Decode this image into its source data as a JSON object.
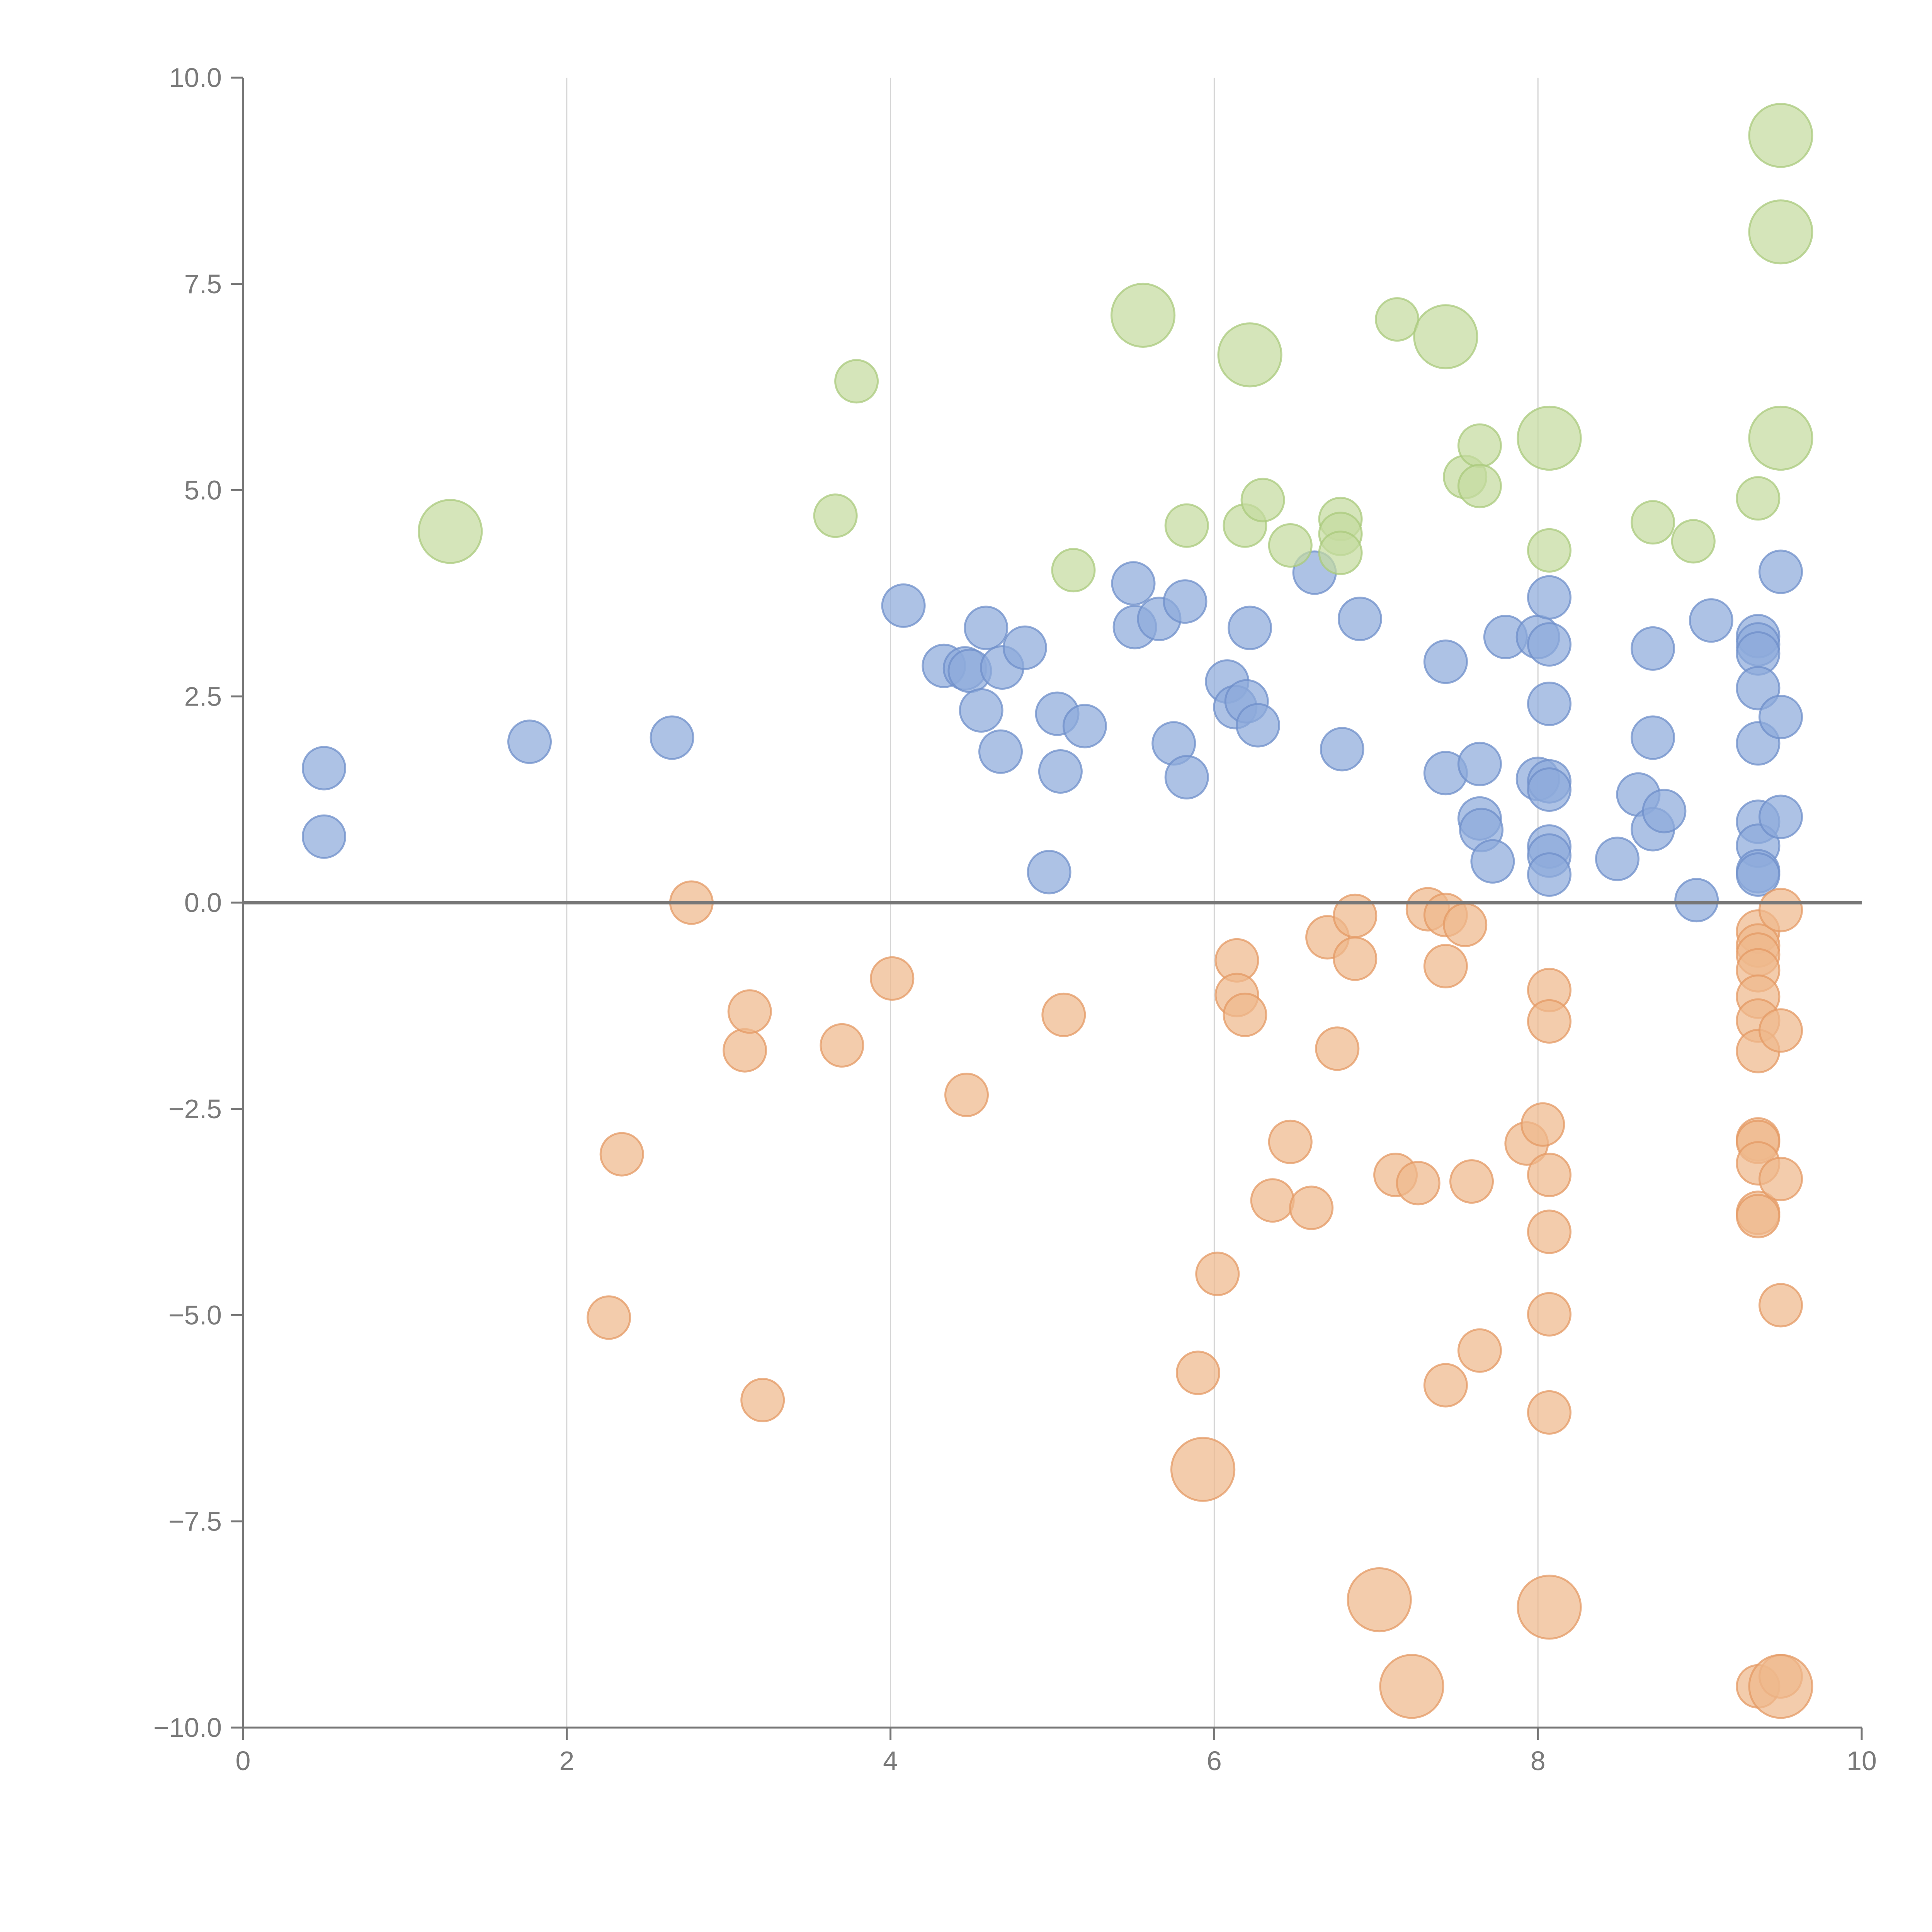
{
  "chart_data": {
    "type": "scatter",
    "title": "",
    "xlabel": "",
    "ylabel": "",
    "xlim": [
      0,
      10
    ],
    "ylim": [
      -10,
      10
    ],
    "x_ticks": [
      0,
      2,
      4,
      6,
      8,
      10
    ],
    "x_tick_labels": [
      "0",
      "2",
      "4",
      "6",
      "8",
      "10"
    ],
    "y_ticks": [
      -10,
      -7.5,
      -5,
      -2.5,
      0,
      2.5,
      5,
      7.5,
      10
    ],
    "y_tick_labels": [
      "−10.0",
      "−7.5",
      "−5.0",
      "−2.5",
      "0.0",
      "2.5",
      "5.0",
      "7.5",
      "10.0"
    ],
    "grid": "vertical lines at x ticks",
    "zero_line": true,
    "legend": "none",
    "series": [
      {
        "color": "#8eaadb",
        "stroke": "#6f8fca",
        "points": [
          {
            "x": 0.5,
            "y": 1.63,
            "size": 1
          },
          {
            "x": 0.5,
            "y": 0.8,
            "size": 1
          },
          {
            "x": 1.77,
            "y": 1.95,
            "size": 1
          },
          {
            "x": 2.65,
            "y": 2.0,
            "size": 1
          },
          {
            "x": 4.08,
            "y": 3.6,
            "size": 1
          },
          {
            "x": 4.33,
            "y": 2.87,
            "size": 1
          },
          {
            "x": 4.46,
            "y": 2.84,
            "size": 1
          },
          {
            "x": 4.49,
            "y": 2.81,
            "size": 1
          },
          {
            "x": 4.56,
            "y": 2.33,
            "size": 1
          },
          {
            "x": 4.59,
            "y": 3.33,
            "size": 1
          },
          {
            "x": 4.68,
            "y": 1.83,
            "size": 1
          },
          {
            "x": 4.69,
            "y": 2.85,
            "size": 1
          },
          {
            "x": 4.83,
            "y": 3.09,
            "size": 1
          },
          {
            "x": 4.98,
            "y": 0.37,
            "size": 1
          },
          {
            "x": 5.03,
            "y": 2.29,
            "size": 1
          },
          {
            "x": 5.05,
            "y": 1.59,
            "size": 1
          },
          {
            "x": 5.2,
            "y": 2.14,
            "size": 1
          },
          {
            "x": 5.5,
            "y": 3.87,
            "size": 1
          },
          {
            "x": 5.51,
            "y": 3.34,
            "size": 1
          },
          {
            "x": 5.66,
            "y": 3.44,
            "size": 1
          },
          {
            "x": 5.75,
            "y": 1.93,
            "size": 1
          },
          {
            "x": 5.82,
            "y": 3.65,
            "size": 1
          },
          {
            "x": 5.83,
            "y": 1.52,
            "size": 1
          },
          {
            "x": 6.08,
            "y": 2.68,
            "size": 1
          },
          {
            "x": 6.13,
            "y": 2.37,
            "size": 1
          },
          {
            "x": 6.2,
            "y": 2.44,
            "size": 1
          },
          {
            "x": 6.22,
            "y": 3.33,
            "size": 1
          },
          {
            "x": 6.27,
            "y": 2.15,
            "size": 1
          },
          {
            "x": 6.62,
            "y": 4.0,
            "size": 1
          },
          {
            "x": 6.79,
            "y": 1.86,
            "size": 1
          },
          {
            "x": 6.9,
            "y": 3.44,
            "size": 1
          },
          {
            "x": 7.43,
            "y": 2.92,
            "size": 1
          },
          {
            "x": 7.43,
            "y": 1.57,
            "size": 1
          },
          {
            "x": 7.64,
            "y": 1.02,
            "size": 1
          },
          {
            "x": 7.64,
            "y": 1.68,
            "size": 1
          },
          {
            "x": 7.65,
            "y": 0.88,
            "size": 1
          },
          {
            "x": 7.72,
            "y": 0.5,
            "size": 1
          },
          {
            "x": 7.8,
            "y": 3.22,
            "size": 1
          },
          {
            "x": 8.0,
            "y": 3.22,
            "size": 1
          },
          {
            "x": 8.0,
            "y": 1.5,
            "size": 1
          },
          {
            "x": 8.07,
            "y": 3.7,
            "size": 1
          },
          {
            "x": 8.07,
            "y": 3.13,
            "size": 1
          },
          {
            "x": 8.07,
            "y": 2.41,
            "size": 1
          },
          {
            "x": 8.07,
            "y": 1.47,
            "size": 1
          },
          {
            "x": 8.07,
            "y": 1.37,
            "size": 1
          },
          {
            "x": 8.07,
            "y": 0.68,
            "size": 1
          },
          {
            "x": 8.07,
            "y": 0.57,
            "size": 1
          },
          {
            "x": 8.07,
            "y": 0.34,
            "size": 1
          },
          {
            "x": 8.49,
            "y": 0.53,
            "size": 1
          },
          {
            "x": 8.62,
            "y": 1.31,
            "size": 1
          },
          {
            "x": 8.71,
            "y": 3.08,
            "size": 1
          },
          {
            "x": 8.71,
            "y": 2.0,
            "size": 1
          },
          {
            "x": 8.71,
            "y": 0.89,
            "size": 1
          },
          {
            "x": 8.78,
            "y": 1.11,
            "size": 1
          },
          {
            "x": 8.98,
            "y": 0.03,
            "size": 1
          },
          {
            "x": 9.07,
            "y": 3.42,
            "size": 1
          },
          {
            "x": 9.36,
            "y": 3.23,
            "size": 1
          },
          {
            "x": 9.36,
            "y": 3.13,
            "size": 1
          },
          {
            "x": 9.36,
            "y": 3.02,
            "size": 1
          },
          {
            "x": 9.36,
            "y": 2.6,
            "size": 1
          },
          {
            "x": 9.36,
            "y": 1.93,
            "size": 1
          },
          {
            "x": 9.36,
            "y": 0.98,
            "size": 1
          },
          {
            "x": 9.36,
            "y": 0.69,
            "size": 1
          },
          {
            "x": 9.36,
            "y": 0.38,
            "size": 1
          },
          {
            "x": 9.36,
            "y": 0.34,
            "size": 1
          },
          {
            "x": 9.5,
            "y": 4.01,
            "size": 1
          },
          {
            "x": 9.5,
            "y": 2.25,
            "size": 1
          },
          {
            "x": 9.5,
            "y": 1.04,
            "size": 1
          }
        ]
      },
      {
        "color": "#efb98c",
        "stroke": "#e49a64",
        "points": [
          {
            "x": 2.77,
            "y": 0.0,
            "size": 1
          },
          {
            "x": 2.26,
            "y": -5.03,
            "size": 1
          },
          {
            "x": 2.34,
            "y": -3.05,
            "size": 1
          },
          {
            "x": 3.1,
            "y": -1.79,
            "size": 1
          },
          {
            "x": 3.13,
            "y": -1.32,
            "size": 1
          },
          {
            "x": 3.21,
            "y": -6.03,
            "size": 1
          },
          {
            "x": 3.7,
            "y": -1.73,
            "size": 1
          },
          {
            "x": 4.01,
            "y": -0.92,
            "size": 1
          },
          {
            "x": 4.47,
            "y": -2.33,
            "size": 1
          },
          {
            "x": 5.07,
            "y": -1.36,
            "size": 1
          },
          {
            "x": 5.9,
            "y": -5.7,
            "size": 1
          },
          {
            "x": 5.93,
            "y": -6.87,
            "size": 2.2
          },
          {
            "x": 6.02,
            "y": -4.5,
            "size": 1
          },
          {
            "x": 6.14,
            "y": -0.7,
            "size": 1
          },
          {
            "x": 6.14,
            "y": -1.12,
            "size": 1
          },
          {
            "x": 6.19,
            "y": -1.36,
            "size": 1
          },
          {
            "x": 6.36,
            "y": -3.61,
            "size": 1
          },
          {
            "x": 6.47,
            "y": -2.9,
            "size": 1
          },
          {
            "x": 6.6,
            "y": -3.7,
            "size": 1
          },
          {
            "x": 6.7,
            "y": -0.42,
            "size": 1
          },
          {
            "x": 6.76,
            "y": -1.77,
            "size": 1
          },
          {
            "x": 6.87,
            "y": -0.68,
            "size": 1
          },
          {
            "x": 6.87,
            "y": -0.16,
            "size": 1
          },
          {
            "x": 7.02,
            "y": -8.45,
            "size": 2.2
          },
          {
            "x": 7.12,
            "y": -3.3,
            "size": 1
          },
          {
            "x": 7.22,
            "y": -9.5,
            "size": 2.2
          },
          {
            "x": 7.26,
            "y": -3.4,
            "size": 1
          },
          {
            "x": 7.32,
            "y": -0.08,
            "size": 1
          },
          {
            "x": 7.43,
            "y": -0.15,
            "size": 1
          },
          {
            "x": 7.43,
            "y": -0.77,
            "size": 1
          },
          {
            "x": 7.43,
            "y": -5.85,
            "size": 1
          },
          {
            "x": 7.55,
            "y": -0.27,
            "size": 1
          },
          {
            "x": 7.59,
            "y": -3.38,
            "size": 1
          },
          {
            "x": 7.64,
            "y": -5.43,
            "size": 1
          },
          {
            "x": 7.93,
            "y": -2.92,
            "size": 1
          },
          {
            "x": 8.03,
            "y": -2.69,
            "size": 1
          },
          {
            "x": 8.07,
            "y": -1.06,
            "size": 1
          },
          {
            "x": 8.07,
            "y": -1.44,
            "size": 1
          },
          {
            "x": 8.07,
            "y": -3.3,
            "size": 1
          },
          {
            "x": 8.07,
            "y": -3.99,
            "size": 1
          },
          {
            "x": 8.07,
            "y": -4.99,
            "size": 1
          },
          {
            "x": 8.07,
            "y": -6.18,
            "size": 1
          },
          {
            "x": 8.07,
            "y": -8.54,
            "size": 2.2
          },
          {
            "x": 9.36,
            "y": -0.35,
            "size": 1
          },
          {
            "x": 9.36,
            "y": -0.52,
            "size": 1
          },
          {
            "x": 9.36,
            "y": -0.63,
            "size": 1
          },
          {
            "x": 9.36,
            "y": -0.82,
            "size": 1
          },
          {
            "x": 9.36,
            "y": -1.14,
            "size": 1
          },
          {
            "x": 9.36,
            "y": -1.43,
            "size": 1
          },
          {
            "x": 9.36,
            "y": -1.8,
            "size": 1
          },
          {
            "x": 9.36,
            "y": -2.87,
            "size": 1
          },
          {
            "x": 9.36,
            "y": -2.9,
            "size": 1
          },
          {
            "x": 9.36,
            "y": -3.16,
            "size": 1
          },
          {
            "x": 9.36,
            "y": -3.76,
            "size": 1
          },
          {
            "x": 9.36,
            "y": -3.8,
            "size": 1
          },
          {
            "x": 9.36,
            "y": -9.5,
            "size": 1
          },
          {
            "x": 9.5,
            "y": -0.09,
            "size": 1
          },
          {
            "x": 9.5,
            "y": -1.55,
            "size": 1
          },
          {
            "x": 9.5,
            "y": -3.35,
            "size": 1
          },
          {
            "x": 9.5,
            "y": -4.88,
            "size": 1
          },
          {
            "x": 9.5,
            "y": -9.38,
            "size": 1
          },
          {
            "x": 9.5,
            "y": -9.5,
            "size": 2.2
          }
        ]
      },
      {
        "color": "#c5dba0",
        "stroke": "#a9c97c",
        "points": [
          {
            "x": 1.28,
            "y": 4.5,
            "size": 2.2
          },
          {
            "x": 3.66,
            "y": 4.69,
            "size": 1
          },
          {
            "x": 3.79,
            "y": 6.32,
            "size": 1
          },
          {
            "x": 5.13,
            "y": 4.03,
            "size": 1
          },
          {
            "x": 5.56,
            "y": 7.12,
            "size": 2.2
          },
          {
            "x": 5.83,
            "y": 4.57,
            "size": 1
          },
          {
            "x": 6.19,
            "y": 4.57,
            "size": 1
          },
          {
            "x": 6.22,
            "y": 6.64,
            "size": 2.2
          },
          {
            "x": 6.3,
            "y": 4.88,
            "size": 1
          },
          {
            "x": 6.47,
            "y": 4.33,
            "size": 1
          },
          {
            "x": 6.78,
            "y": 4.65,
            "size": 1
          },
          {
            "x": 6.78,
            "y": 4.47,
            "size": 1
          },
          {
            "x": 6.78,
            "y": 4.24,
            "size": 1
          },
          {
            "x": 7.13,
            "y": 7.07,
            "size": 1
          },
          {
            "x": 7.43,
            "y": 6.86,
            "size": 2.2
          },
          {
            "x": 7.55,
            "y": 5.16,
            "size": 1
          },
          {
            "x": 7.64,
            "y": 5.54,
            "size": 1
          },
          {
            "x": 7.64,
            "y": 5.05,
            "size": 1
          },
          {
            "x": 8.07,
            "y": 5.63,
            "size": 2.2
          },
          {
            "x": 8.07,
            "y": 4.27,
            "size": 1
          },
          {
            "x": 8.71,
            "y": 4.61,
            "size": 1
          },
          {
            "x": 8.96,
            "y": 4.38,
            "size": 1
          },
          {
            "x": 9.36,
            "y": 4.9,
            "size": 1
          },
          {
            "x": 9.5,
            "y": 9.3,
            "size": 2.2
          },
          {
            "x": 9.5,
            "y": 8.13,
            "size": 2.2
          },
          {
            "x": 9.5,
            "y": 5.63,
            "size": 2.2
          }
        ]
      }
    ]
  }
}
